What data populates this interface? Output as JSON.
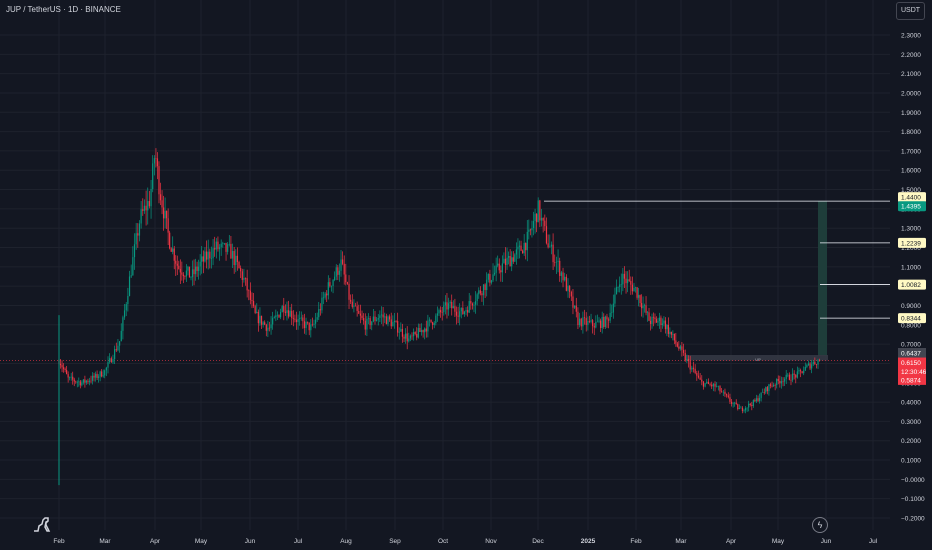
{
  "header": {
    "symbol_title": "JUP / TetherUS · 1D · BINANCE",
    "currency_button": "USDT"
  },
  "colors": {
    "background": "#131722",
    "up_candle": "#089981",
    "down_candle": "#f23645",
    "axis_text": "#d1d4dc",
    "target_line": "#f0f3fa",
    "target_label_bg": "#fff9c4",
    "take_profit_zone": "#1e3d3a",
    "current_price_bg": "#f23645",
    "resistance_box": "#363a45"
  },
  "icons": {
    "logo": "tradingview-dinosaur-icon",
    "replay": "lightning-icon"
  },
  "chart_data": {
    "type": "candlestick",
    "y_axis": {
      "ticks": [
        "2.3000",
        "2.2000",
        "2.1000",
        "2.0000",
        "1.9000",
        "1.8000",
        "1.7000",
        "1.6000",
        "1.5000",
        "1.4000",
        "1.3000",
        "1.2000",
        "1.1000",
        "1.0000",
        "0.9000",
        "0.8000",
        "0.7000",
        "0.6000",
        "0.5000",
        "0.4000",
        "0.3000",
        "0.2000",
        "0.1000",
        "−0.0000",
        "−0.1000",
        "−0.2000"
      ],
      "tick_values": [
        2.3,
        2.2,
        2.1,
        2.0,
        1.9,
        1.8,
        1.7,
        1.6,
        1.5,
        1.4,
        1.3,
        1.2,
        1.1,
        1.0,
        0.9,
        0.8,
        0.7,
        0.6,
        0.5,
        0.4,
        0.3,
        0.2,
        0.1,
        0.0,
        -0.1,
        -0.2
      ],
      "ylim": [
        -0.2,
        2.35
      ]
    },
    "x_axis": {
      "labels": [
        "Feb",
        "Mar",
        "Apr",
        "May",
        "Jun",
        "Jul",
        "Aug",
        "Sep",
        "Oct",
        "Nov",
        "Dec",
        "2025",
        "Feb",
        "Mar",
        "Apr",
        "May",
        "Jun",
        "Jul"
      ],
      "month_index": [
        0,
        1,
        2,
        3,
        4,
        5,
        6,
        7,
        8,
        9,
        10,
        11,
        12,
        13,
        14,
        15,
        16,
        17
      ]
    },
    "price_path": [
      [
        0.0,
        0.62
      ],
      [
        0.2,
        0.52
      ],
      [
        0.5,
        0.5
      ],
      [
        0.8,
        0.53
      ],
      [
        1.0,
        0.56
      ],
      [
        1.3,
        0.72
      ],
      [
        1.5,
        1.05
      ],
      [
        1.7,
        1.35
      ],
      [
        1.9,
        1.45
      ],
      [
        2.0,
        1.7
      ],
      [
        2.1,
        1.5
      ],
      [
        2.3,
        1.25
      ],
      [
        2.5,
        1.1
      ],
      [
        2.8,
        1.05
      ],
      [
        3.0,
        1.12
      ],
      [
        3.3,
        1.2
      ],
      [
        3.6,
        1.18
      ],
      [
        3.9,
        1.02
      ],
      [
        4.1,
        0.85
      ],
      [
        4.4,
        0.78
      ],
      [
        4.7,
        0.9
      ],
      [
        5.0,
        0.82
      ],
      [
        5.3,
        0.78
      ],
      [
        5.6,
        0.98
      ],
      [
        5.9,
        1.12
      ],
      [
        6.1,
        0.9
      ],
      [
        6.4,
        0.8
      ],
      [
        6.7,
        0.85
      ],
      [
        7.0,
        0.8
      ],
      [
        7.3,
        0.72
      ],
      [
        7.6,
        0.78
      ],
      [
        7.9,
        0.85
      ],
      [
        8.1,
        0.9
      ],
      [
        8.4,
        0.86
      ],
      [
        8.7,
        0.95
      ],
      [
        9.0,
        1.05
      ],
      [
        9.3,
        1.12
      ],
      [
        9.6,
        1.18
      ],
      [
        9.8,
        1.25
      ],
      [
        10.0,
        1.4
      ],
      [
        10.2,
        1.22
      ],
      [
        10.5,
        1.05
      ],
      [
        10.8,
        0.82
      ],
      [
        11.1,
        0.8
      ],
      [
        11.4,
        0.82
      ],
      [
        11.7,
        1.05
      ],
      [
        12.0,
        0.98
      ],
      [
        12.3,
        0.82
      ],
      [
        12.6,
        0.82
      ],
      [
        12.9,
        0.7
      ],
      [
        13.1,
        0.62
      ],
      [
        13.4,
        0.5
      ],
      [
        13.7,
        0.48
      ],
      [
        14.0,
        0.4
      ],
      [
        14.2,
        0.36
      ],
      [
        14.5,
        0.4
      ],
      [
        14.8,
        0.48
      ],
      [
        15.1,
        0.52
      ],
      [
        15.4,
        0.54
      ],
      [
        15.7,
        0.6
      ],
      [
        15.9,
        0.62
      ]
    ],
    "targets": [
      {
        "label": "1.4400",
        "value": 1.44
      },
      {
        "label": "1.4395",
        "value": 1.4395
      },
      {
        "label": "1.2239",
        "value": 1.2239
      },
      {
        "label": "1.0082",
        "value": 1.0082
      },
      {
        "label": "0.8344",
        "value": 0.8344
      }
    ],
    "price_badges": [
      {
        "label": "0.6437",
        "value": 0.6437
      },
      {
        "label": "0.6150",
        "value": 0.615
      },
      {
        "label": "12:30:46",
        "value": 0.615
      },
      {
        "label": "0.5874",
        "value": 0.5874
      }
    ],
    "resistance_zone": {
      "low": 0.615,
      "high": 0.6437,
      "label": "UP"
    }
  }
}
